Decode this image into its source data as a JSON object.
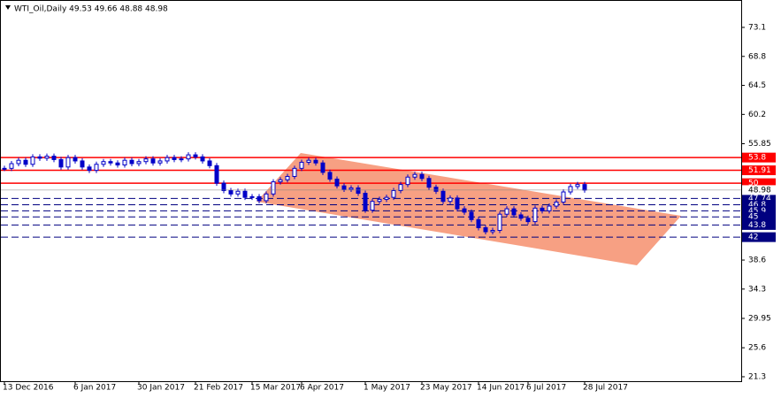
{
  "chart_data": {
    "type": "candlestick",
    "title": "WTI_Oil,Daily  49.53 49.66 48.88 48.98",
    "categories": [
      "13 Dec 2016",
      null,
      null,
      null,
      null,
      null,
      null,
      null,
      null,
      null,
      "6 Jan 2017",
      null,
      null,
      null,
      null,
      null,
      null,
      null,
      null,
      "30 Jan 2017",
      null,
      null,
      null,
      null,
      null,
      null,
      null,
      "21 Feb 2017",
      null,
      null,
      null,
      null,
      null,
      null,
      null,
      "15 Mar 2017",
      null,
      null,
      null,
      null,
      null,
      null,
      "6 Apr 2017",
      null,
      null,
      null,
      null,
      null,
      null,
      null,
      null,
      "1 May 2017",
      null,
      null,
      null,
      null,
      null,
      null,
      null,
      "23 May 2017",
      null,
      null,
      null,
      null,
      null,
      null,
      null,
      "14 Jun 2017",
      null,
      null,
      null,
      null,
      null,
      null,
      "6 Jul 2017",
      null,
      null,
      null,
      null,
      null,
      null,
      null,
      "28 Jul 2017"
    ],
    "values": [
      52.2,
      52.9,
      53.4,
      52.8,
      53.9,
      53.7,
      54.0,
      53.5,
      52.4,
      53.8,
      53.3,
      52.4,
      51.9,
      52.8,
      53.2,
      53.0,
      52.7,
      53.4,
      52.9,
      53.2,
      53.6,
      53.0,
      53.3,
      53.8,
      53.5,
      53.6,
      54.2,
      53.9,
      53.3,
      52.6,
      50.0,
      48.9,
      48.4,
      48.8,
      47.9,
      48.0,
      47.4,
      48.4,
      50.2,
      50.5,
      51.0,
      52.2,
      53.1,
      53.4,
      53.0,
      51.6,
      50.6,
      49.6,
      49.1,
      49.3,
      48.5,
      46.0,
      47.3,
      47.6,
      47.9,
      48.9,
      49.8,
      50.9,
      51.3,
      50.7,
      49.4,
      48.8,
      47.3,
      47.8,
      46.2,
      45.7,
      44.6,
      43.4,
      42.8,
      43.0,
      45.4,
      46.2,
      45.3,
      44.8,
      44.3,
      46.3,
      45.9,
      46.6,
      47.2,
      48.7,
      49.5,
      49.8,
      48.98
    ],
    "color": "#0000c8",
    "ylim": [
      20.64,
      77.03
    ],
    "yticks": [
      73.1,
      68.8,
      64.5,
      60.2,
      55.85,
      38.6,
      34.3,
      29.95,
      25.6,
      21.3
    ],
    "resistance_levels": [
      53.8,
      51.91,
      50.0
    ],
    "resistance_color": "#ff0000",
    "support_levels": [
      47.74,
      46.8,
      45.9,
      45.0,
      43.8,
      42.0
    ],
    "support_color": "#000080",
    "last_price": 48.98
  }
}
